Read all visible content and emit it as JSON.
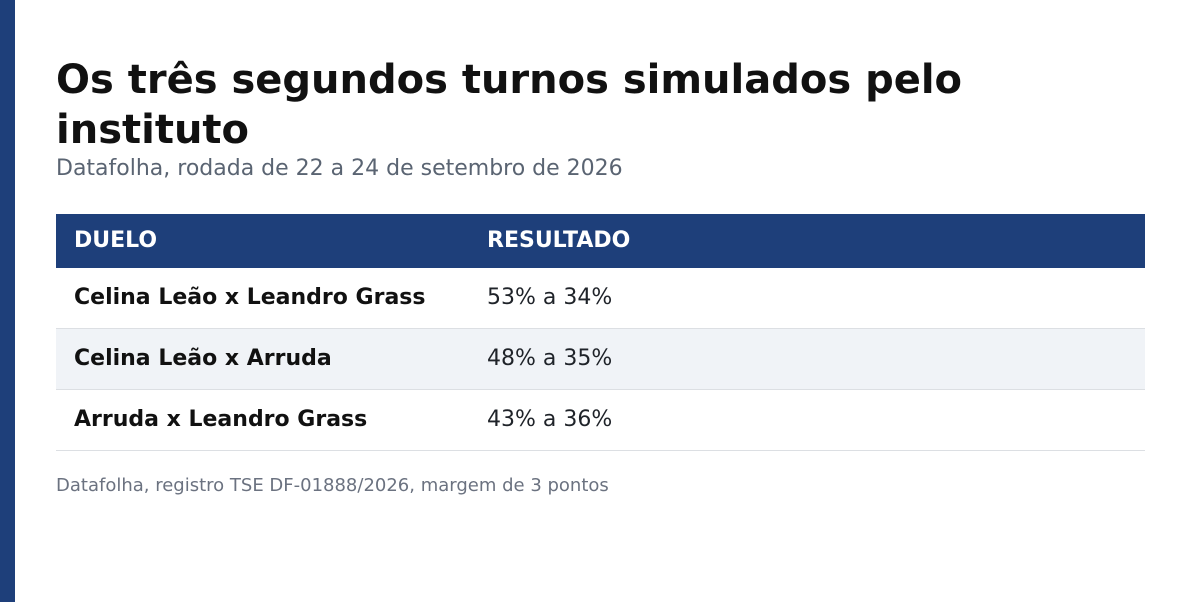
{
  "title": "Os três segundos turnos simulados pelo instituto",
  "subtitle": "Datafolha, rodada de 22 a 24 de setembro de 2026",
  "table": {
    "headers": [
      "DUELO",
      "RESULTADO"
    ],
    "rows": [
      [
        "Celina Leão x Leandro Grass",
        "53% a 34%"
      ],
      [
        "Celina Leão x Arruda",
        "48% a 35%"
      ],
      [
        "Arruda x Leandro Grass",
        "43% a 36%"
      ]
    ]
  },
  "footer": "Datafolha, registro TSE DF-01888/2026, margem de 3 pontos"
}
